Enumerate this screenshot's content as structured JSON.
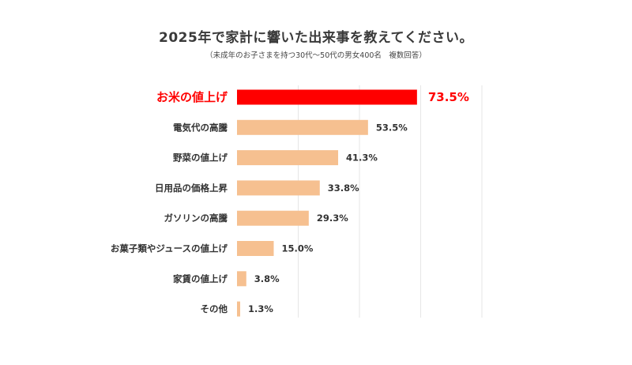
{
  "chart_data": {
    "type": "bar",
    "orientation": "horizontal",
    "title": "2025年で家計に響いた出来事を教えてください。",
    "subtitle": "（未成年のお子さまを持つ30代〜50代の男女400名　複数回答）",
    "categories": [
      "お米の値上げ",
      "電気代の高騰",
      "野菜の値上げ",
      "日用品の価格上昇",
      "ガソリンの高騰",
      "お菓子類やジュースの値上げ",
      "家賃の値上げ",
      "その他"
    ],
    "values": [
      73.5,
      53.5,
      41.3,
      33.8,
      29.3,
      15.0,
      3.8,
      1.3
    ],
    "value_labels": [
      "73.5%",
      "53.5%",
      "41.3%",
      "33.8%",
      "29.3%",
      "15.0%",
      "3.8%",
      "1.3%"
    ],
    "xlim": [
      0,
      100
    ],
    "grid": true,
    "highlight_index": 0,
    "colors": {
      "bar": "#f6c090",
      "highlight": "#ff0000",
      "label": "#333333",
      "highlight_label": "#ff0000",
      "grid": "#e6e6e6"
    }
  }
}
